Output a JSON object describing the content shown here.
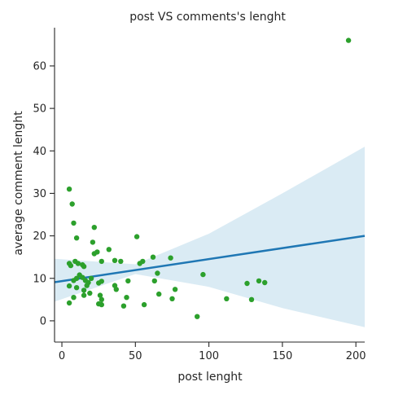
{
  "chart_data": {
    "type": "scatter",
    "title": "post VS comments's lenght",
    "xlabel": "post lenght",
    "ylabel": "average comment lenght",
    "xlim": [
      -5,
      206
    ],
    "ylim": [
      -5,
      69
    ],
    "xticks": [
      0,
      50,
      100,
      150,
      200
    ],
    "yticks": [
      0,
      10,
      20,
      30,
      40,
      50,
      60
    ],
    "grid": false,
    "colors": {
      "points": "#2ca02c",
      "line": "#1f77b4",
      "band": "#9ecae1"
    },
    "regression": {
      "x": [
        -5,
        206
      ],
      "y": [
        9.1,
        20.0
      ]
    },
    "confidence_band": {
      "x": [
        -5,
        50,
        100,
        150,
        206
      ],
      "upper": [
        14.6,
        13.3,
        20.5,
        30.0,
        41.0
      ],
      "lower": [
        4.5,
        11.0,
        8.0,
        3.0,
        -1.5
      ]
    },
    "points": [
      {
        "x": 5,
        "y": 31
      },
      {
        "x": 7,
        "y": 27.5
      },
      {
        "x": 8,
        "y": 23
      },
      {
        "x": 10,
        "y": 19.5
      },
      {
        "x": 22,
        "y": 22
      },
      {
        "x": 21,
        "y": 18.5
      },
      {
        "x": 22,
        "y": 15.8
      },
      {
        "x": 24,
        "y": 16.2
      },
      {
        "x": 32,
        "y": 16.8
      },
      {
        "x": 51,
        "y": 19.8
      },
      {
        "x": 5,
        "y": 13.5
      },
      {
        "x": 6,
        "y": 13
      },
      {
        "x": 9,
        "y": 14
      },
      {
        "x": 11,
        "y": 13.5
      },
      {
        "x": 14,
        "y": 13.2
      },
      {
        "x": 15,
        "y": 12.8
      },
      {
        "x": 12,
        "y": 10.8
      },
      {
        "x": 10,
        "y": 10
      },
      {
        "x": 8,
        "y": 9.5
      },
      {
        "x": 14,
        "y": 10.2
      },
      {
        "x": 16,
        "y": 9.5
      },
      {
        "x": 18,
        "y": 9
      },
      {
        "x": 20,
        "y": 10
      },
      {
        "x": 5,
        "y": 8.2
      },
      {
        "x": 10,
        "y": 7.8
      },
      {
        "x": 15,
        "y": 7.2
      },
      {
        "x": 17,
        "y": 8.3
      },
      {
        "x": 8,
        "y": 5.5
      },
      {
        "x": 15,
        "y": 6
      },
      {
        "x": 19,
        "y": 6.5
      },
      {
        "x": 5,
        "y": 4.2
      },
      {
        "x": 27,
        "y": 14
      },
      {
        "x": 25,
        "y": 8.9
      },
      {
        "x": 27,
        "y": 9.3
      },
      {
        "x": 26,
        "y": 6
      },
      {
        "x": 27,
        "y": 5
      },
      {
        "x": 25,
        "y": 4
      },
      {
        "x": 27,
        "y": 3.8
      },
      {
        "x": 36,
        "y": 14.2
      },
      {
        "x": 40,
        "y": 14
      },
      {
        "x": 36,
        "y": 8.3
      },
      {
        "x": 37,
        "y": 7.4
      },
      {
        "x": 45,
        "y": 9.4
      },
      {
        "x": 44,
        "y": 5.5
      },
      {
        "x": 42,
        "y": 3.5
      },
      {
        "x": 53,
        "y": 13.5
      },
      {
        "x": 55,
        "y": 14
      },
      {
        "x": 56,
        "y": 3.8
      },
      {
        "x": 62,
        "y": 15
      },
      {
        "x": 63,
        "y": 9.4
      },
      {
        "x": 65,
        "y": 11.2
      },
      {
        "x": 66,
        "y": 6.3
      },
      {
        "x": 74,
        "y": 14.8
      },
      {
        "x": 77,
        "y": 7.4
      },
      {
        "x": 75,
        "y": 5.2
      },
      {
        "x": 96,
        "y": 10.9
      },
      {
        "x": 92,
        "y": 1
      },
      {
        "x": 112,
        "y": 5.2
      },
      {
        "x": 126,
        "y": 8.8
      },
      {
        "x": 129,
        "y": 5
      },
      {
        "x": 134,
        "y": 9.4
      },
      {
        "x": 138,
        "y": 9
      },
      {
        "x": 195,
        "y": 66
      }
    ]
  }
}
